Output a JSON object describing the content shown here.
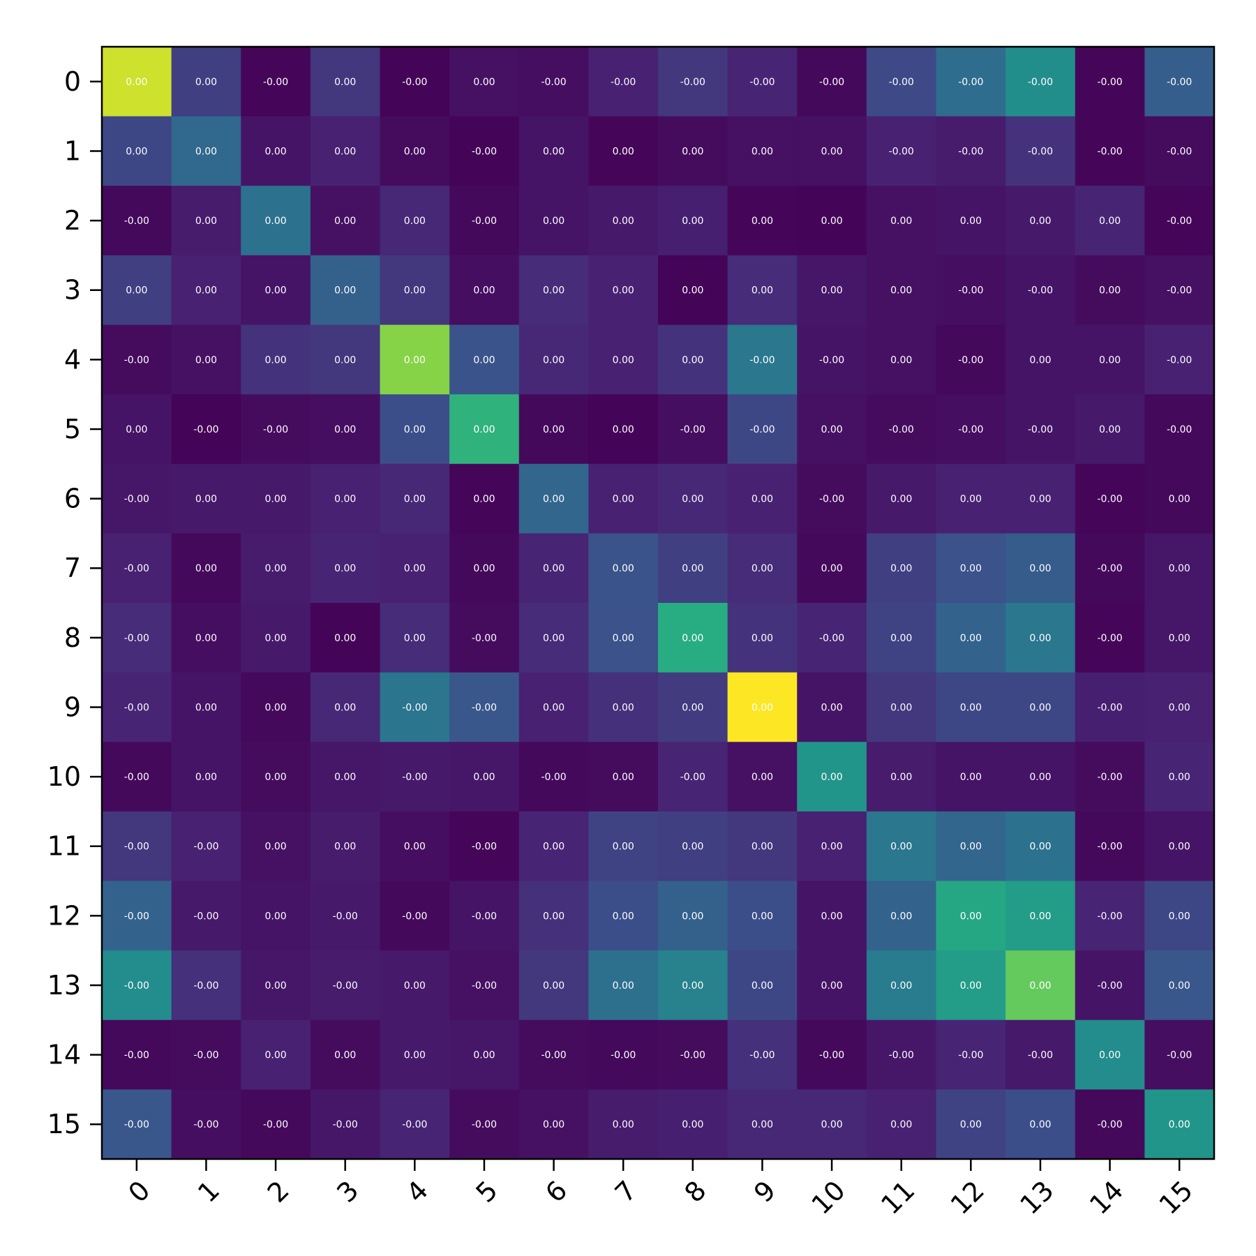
{
  "chart_data": {
    "type": "heatmap",
    "title": "",
    "xlabel": "",
    "ylabel": "",
    "x_categories": [
      "0",
      "1",
      "2",
      "3",
      "4",
      "5",
      "6",
      "7",
      "8",
      "9",
      "10",
      "11",
      "12",
      "13",
      "14",
      "15"
    ],
    "y_categories": [
      "0",
      "1",
      "2",
      "3",
      "4",
      "5",
      "6",
      "7",
      "8",
      "9",
      "10",
      "11",
      "12",
      "13",
      "14",
      "15"
    ],
    "x_tick_rotation": 45,
    "colormap": "viridis",
    "grid": false,
    "colorbar": false,
    "value_range": [
      0,
      1
    ],
    "intensity": [
      [
        0.93,
        0.2,
        0.02,
        0.18,
        0.01,
        0.06,
        0.05,
        0.12,
        0.18,
        0.13,
        0.03,
        0.23,
        0.36,
        0.49,
        0.02,
        0.3
      ],
      [
        0.22,
        0.34,
        0.07,
        0.12,
        0.04,
        0.01,
        0.07,
        0.02,
        0.04,
        0.06,
        0.06,
        0.12,
        0.1,
        0.17,
        0.02,
        0.04
      ],
      [
        0.03,
        0.1,
        0.38,
        0.06,
        0.14,
        0.03,
        0.07,
        0.09,
        0.11,
        0.02,
        0.01,
        0.06,
        0.07,
        0.09,
        0.13,
        0.02
      ],
      [
        0.2,
        0.12,
        0.07,
        0.31,
        0.18,
        0.05,
        0.15,
        0.12,
        0.01,
        0.15,
        0.08,
        0.06,
        0.05,
        0.07,
        0.04,
        0.06
      ],
      [
        0.04,
        0.06,
        0.17,
        0.18,
        0.82,
        0.26,
        0.14,
        0.12,
        0.17,
        0.4,
        0.07,
        0.06,
        0.03,
        0.07,
        0.07,
        0.12
      ],
      [
        0.07,
        0.01,
        0.04,
        0.05,
        0.24,
        0.65,
        0.03,
        0.01,
        0.05,
        0.22,
        0.06,
        0.04,
        0.05,
        0.07,
        0.09,
        0.03
      ],
      [
        0.08,
        0.09,
        0.09,
        0.12,
        0.14,
        0.02,
        0.33,
        0.12,
        0.14,
        0.12,
        0.04,
        0.09,
        0.12,
        0.12,
        0.02,
        0.03
      ],
      [
        0.12,
        0.03,
        0.1,
        0.13,
        0.12,
        0.03,
        0.13,
        0.26,
        0.2,
        0.15,
        0.03,
        0.2,
        0.25,
        0.29,
        0.03,
        0.08
      ],
      [
        0.15,
        0.05,
        0.09,
        0.01,
        0.15,
        0.04,
        0.15,
        0.25,
        0.63,
        0.17,
        0.13,
        0.21,
        0.32,
        0.4,
        0.02,
        0.08
      ],
      [
        0.13,
        0.07,
        0.03,
        0.14,
        0.39,
        0.27,
        0.12,
        0.16,
        0.19,
        1.0,
        0.07,
        0.18,
        0.22,
        0.22,
        0.11,
        0.12
      ],
      [
        0.03,
        0.07,
        0.04,
        0.08,
        0.09,
        0.08,
        0.03,
        0.04,
        0.13,
        0.06,
        0.52,
        0.1,
        0.07,
        0.07,
        0.04,
        0.13
      ],
      [
        0.18,
        0.12,
        0.06,
        0.1,
        0.05,
        0.02,
        0.13,
        0.21,
        0.2,
        0.18,
        0.12,
        0.4,
        0.33,
        0.38,
        0.03,
        0.07
      ],
      [
        0.32,
        0.09,
        0.07,
        0.09,
        0.03,
        0.07,
        0.16,
        0.24,
        0.31,
        0.24,
        0.07,
        0.32,
        0.6,
        0.55,
        0.13,
        0.22
      ],
      [
        0.48,
        0.16,
        0.08,
        0.1,
        0.09,
        0.06,
        0.18,
        0.37,
        0.44,
        0.22,
        0.07,
        0.42,
        0.55,
        0.76,
        0.07,
        0.27
      ],
      [
        0.03,
        0.04,
        0.12,
        0.04,
        0.09,
        0.08,
        0.04,
        0.03,
        0.04,
        0.16,
        0.03,
        0.08,
        0.13,
        0.09,
        0.48,
        0.05
      ],
      [
        0.27,
        0.05,
        0.03,
        0.08,
        0.13,
        0.04,
        0.06,
        0.1,
        0.11,
        0.14,
        0.14,
        0.12,
        0.21,
        0.24,
        0.03,
        0.52
      ]
    ],
    "cell_labels": [
      [
        "0.00",
        "0.00",
        "-0.00",
        "0.00",
        "-0.00",
        "0.00",
        "-0.00",
        "-0.00",
        "-0.00",
        "-0.00",
        "-0.00",
        "-0.00",
        "-0.00",
        "-0.00",
        "-0.00",
        "-0.00"
      ],
      [
        "0.00",
        "0.00",
        "0.00",
        "0.00",
        "0.00",
        "-0.00",
        "0.00",
        "0.00",
        "0.00",
        "0.00",
        "0.00",
        "-0.00",
        "-0.00",
        "-0.00",
        "-0.00",
        "-0.00"
      ],
      [
        "-0.00",
        "0.00",
        "0.00",
        "0.00",
        "0.00",
        "-0.00",
        "0.00",
        "0.00",
        "0.00",
        "0.00",
        "0.00",
        "0.00",
        "0.00",
        "0.00",
        "0.00",
        "-0.00"
      ],
      [
        "0.00",
        "0.00",
        "0.00",
        "0.00",
        "0.00",
        "0.00",
        "0.00",
        "0.00",
        "0.00",
        "0.00",
        "0.00",
        "0.00",
        "-0.00",
        "-0.00",
        "0.00",
        "-0.00"
      ],
      [
        "-0.00",
        "0.00",
        "0.00",
        "0.00",
        "0.00",
        "0.00",
        "0.00",
        "0.00",
        "0.00",
        "-0.00",
        "-0.00",
        "0.00",
        "-0.00",
        "0.00",
        "0.00",
        "-0.00"
      ],
      [
        "0.00",
        "-0.00",
        "-0.00",
        "0.00",
        "0.00",
        "0.00",
        "0.00",
        "0.00",
        "-0.00",
        "-0.00",
        "0.00",
        "-0.00",
        "-0.00",
        "-0.00",
        "0.00",
        "-0.00"
      ],
      [
        "-0.00",
        "0.00",
        "0.00",
        "0.00",
        "0.00",
        "0.00",
        "0.00",
        "0.00",
        "0.00",
        "0.00",
        "-0.00",
        "0.00",
        "0.00",
        "0.00",
        "-0.00",
        "0.00"
      ],
      [
        "-0.00",
        "0.00",
        "0.00",
        "0.00",
        "0.00",
        "0.00",
        "0.00",
        "0.00",
        "0.00",
        "0.00",
        "0.00",
        "0.00",
        "0.00",
        "0.00",
        "-0.00",
        "0.00"
      ],
      [
        "-0.00",
        "0.00",
        "0.00",
        "0.00",
        "0.00",
        "-0.00",
        "0.00",
        "0.00",
        "0.00",
        "0.00",
        "-0.00",
        "0.00",
        "0.00",
        "0.00",
        "-0.00",
        "0.00"
      ],
      [
        "-0.00",
        "0.00",
        "0.00",
        "0.00",
        "-0.00",
        "-0.00",
        "0.00",
        "0.00",
        "0.00",
        "0.00",
        "0.00",
        "0.00",
        "0.00",
        "0.00",
        "-0.00",
        "0.00"
      ],
      [
        "-0.00",
        "0.00",
        "0.00",
        "0.00",
        "-0.00",
        "0.00",
        "-0.00",
        "0.00",
        "-0.00",
        "0.00",
        "0.00",
        "0.00",
        "0.00",
        "0.00",
        "-0.00",
        "0.00"
      ],
      [
        "-0.00",
        "-0.00",
        "0.00",
        "0.00",
        "0.00",
        "-0.00",
        "0.00",
        "0.00",
        "0.00",
        "0.00",
        "0.00",
        "0.00",
        "0.00",
        "0.00",
        "-0.00",
        "0.00"
      ],
      [
        "-0.00",
        "-0.00",
        "0.00",
        "-0.00",
        "-0.00",
        "-0.00",
        "0.00",
        "0.00",
        "0.00",
        "0.00",
        "0.00",
        "0.00",
        "0.00",
        "0.00",
        "-0.00",
        "0.00"
      ],
      [
        "-0.00",
        "-0.00",
        "0.00",
        "-0.00",
        "0.00",
        "-0.00",
        "0.00",
        "0.00",
        "0.00",
        "0.00",
        "0.00",
        "0.00",
        "0.00",
        "0.00",
        "-0.00",
        "0.00"
      ],
      [
        "-0.00",
        "-0.00",
        "0.00",
        "0.00",
        "0.00",
        "0.00",
        "-0.00",
        "-0.00",
        "-0.00",
        "-0.00",
        "-0.00",
        "-0.00",
        "-0.00",
        "-0.00",
        "0.00",
        "-0.00"
      ],
      [
        "-0.00",
        "-0.00",
        "-0.00",
        "-0.00",
        "-0.00",
        "-0.00",
        "0.00",
        "0.00",
        "0.00",
        "0.00",
        "0.00",
        "0.00",
        "0.00",
        "0.00",
        "-0.00",
        "0.00"
      ]
    ]
  }
}
